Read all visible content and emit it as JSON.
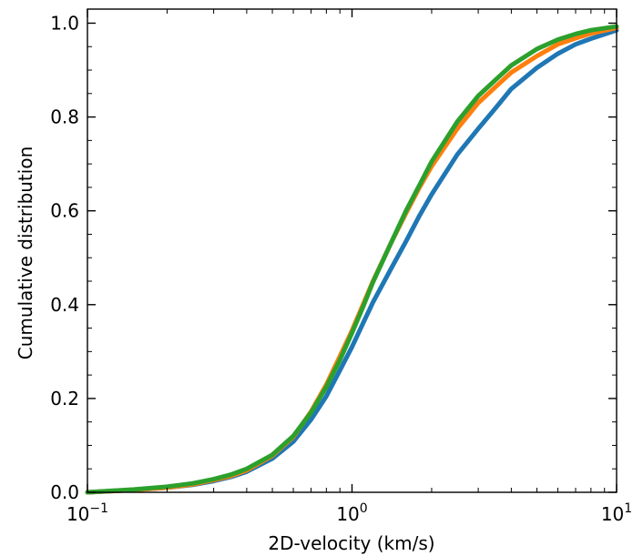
{
  "chart_data": {
    "type": "line",
    "title": "",
    "xlabel": "2D-velocity (km/s)",
    "ylabel": "Cumulative distribution",
    "xscale": "log",
    "xlim": [
      0.1,
      10
    ],
    "ylim": [
      0.0,
      1.03
    ],
    "grid": false,
    "x_ticks": [
      {
        "value": 0.1,
        "base": "10",
        "exp": "−1"
      },
      {
        "value": 1,
        "base": "10",
        "exp": "0"
      },
      {
        "value": 10,
        "base": "10",
        "exp": "1"
      }
    ],
    "y_ticks": [
      {
        "value": 0.0,
        "label": "0.0"
      },
      {
        "value": 0.2,
        "label": "0.2"
      },
      {
        "value": 0.4,
        "label": "0.4"
      },
      {
        "value": 0.6,
        "label": "0.6"
      },
      {
        "value": 0.8,
        "label": "0.8"
      },
      {
        "value": 1.0,
        "label": "1.0"
      }
    ],
    "series": [
      {
        "name": "blue",
        "color": "#1f77b4",
        "x": [
          0.1,
          0.15,
          0.2,
          0.25,
          0.3,
          0.35,
          0.4,
          0.5,
          0.6,
          0.7,
          0.8,
          0.9,
          1.0,
          1.1,
          1.2,
          1.4,
          1.6,
          1.8,
          2.0,
          2.5,
          3.0,
          3.5,
          4.0,
          5.0,
          6.0,
          7.0,
          8.0,
          10.0
        ],
        "y": [
          0.0,
          0.005,
          0.01,
          0.016,
          0.024,
          0.033,
          0.044,
          0.072,
          0.108,
          0.155,
          0.205,
          0.26,
          0.31,
          0.36,
          0.405,
          0.475,
          0.535,
          0.59,
          0.635,
          0.72,
          0.775,
          0.82,
          0.86,
          0.905,
          0.935,
          0.955,
          0.967,
          0.985
        ]
      },
      {
        "name": "orange",
        "color": "#ff7f0e",
        "x": [
          0.1,
          0.15,
          0.2,
          0.25,
          0.3,
          0.35,
          0.4,
          0.5,
          0.6,
          0.7,
          0.8,
          0.9,
          1.0,
          1.1,
          1.2,
          1.4,
          1.6,
          1.8,
          2.0,
          2.5,
          3.0,
          3.5,
          4.0,
          5.0,
          6.0,
          7.0,
          8.0,
          10.0
        ],
        "y": [
          0.0,
          0.005,
          0.01,
          0.017,
          0.026,
          0.035,
          0.047,
          0.078,
          0.118,
          0.172,
          0.23,
          0.29,
          0.345,
          0.4,
          0.45,
          0.53,
          0.595,
          0.65,
          0.695,
          0.775,
          0.83,
          0.865,
          0.895,
          0.93,
          0.955,
          0.968,
          0.978,
          0.99
        ]
      },
      {
        "name": "green",
        "color": "#2ca02c",
        "x": [
          0.1,
          0.15,
          0.2,
          0.25,
          0.3,
          0.35,
          0.4,
          0.5,
          0.6,
          0.7,
          0.8,
          0.9,
          1.0,
          1.1,
          1.2,
          1.4,
          1.6,
          1.8,
          2.0,
          2.5,
          3.0,
          3.5,
          4.0,
          5.0,
          6.0,
          7.0,
          8.0,
          10.0
        ],
        "y": [
          0.0,
          0.006,
          0.012,
          0.019,
          0.028,
          0.038,
          0.05,
          0.08,
          0.12,
          0.17,
          0.225,
          0.282,
          0.34,
          0.395,
          0.448,
          0.53,
          0.6,
          0.655,
          0.705,
          0.79,
          0.845,
          0.88,
          0.91,
          0.945,
          0.965,
          0.977,
          0.985,
          0.993
        ]
      }
    ]
  }
}
